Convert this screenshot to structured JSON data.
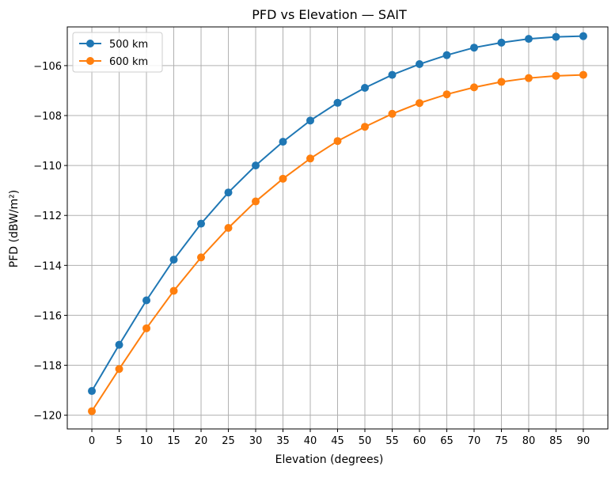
{
  "chart_data": {
    "type": "line",
    "title": "PFD vs Elevation — SAIT",
    "xlabel": "Elevation (degrees)",
    "ylabel": "PFD (dBW/m²)",
    "xlim": [
      -4.5,
      94.5
    ],
    "ylim": [
      -120.55,
      -104.45
    ],
    "x_ticks": [
      0,
      5,
      10,
      15,
      20,
      25,
      30,
      35,
      40,
      45,
      50,
      55,
      60,
      65,
      70,
      75,
      80,
      85,
      90
    ],
    "x_tick_labels": [
      "0",
      "5",
      "10",
      "15",
      "20",
      "25",
      "30",
      "35",
      "40",
      "45",
      "50",
      "55",
      "60",
      "65",
      "70",
      "75",
      "80",
      "85",
      "90"
    ],
    "y_ticks": [
      -120,
      -118,
      -116,
      -114,
      -112,
      -110,
      -108,
      -106
    ],
    "y_tick_labels": [
      "−120",
      "−118",
      "−116",
      "−114",
      "−112",
      "−110",
      "−108",
      "−106"
    ],
    "grid": true,
    "legend_position": "top-left",
    "x": [
      0,
      5,
      10,
      15,
      20,
      25,
      30,
      35,
      40,
      45,
      50,
      55,
      60,
      65,
      70,
      75,
      80,
      85,
      90
    ],
    "series": [
      {
        "name": "500 km",
        "color": "#1f77b4",
        "values": [
          -119.03,
          -117.18,
          -115.4,
          -113.77,
          -112.33,
          -111.08,
          -110.0,
          -109.05,
          -108.2,
          -107.49,
          -106.89,
          -106.37,
          -105.94,
          -105.58,
          -105.28,
          -105.08,
          -104.93,
          -104.85,
          -104.82
        ]
      },
      {
        "name": "600 km",
        "color": "#ff7f0e",
        "values": [
          -119.84,
          -118.15,
          -116.52,
          -115.02,
          -113.68,
          -112.5,
          -111.44,
          -110.53,
          -109.72,
          -109.02,
          -108.45,
          -107.93,
          -107.5,
          -107.15,
          -106.87,
          -106.65,
          -106.5,
          -106.41,
          -106.37
        ]
      }
    ]
  }
}
